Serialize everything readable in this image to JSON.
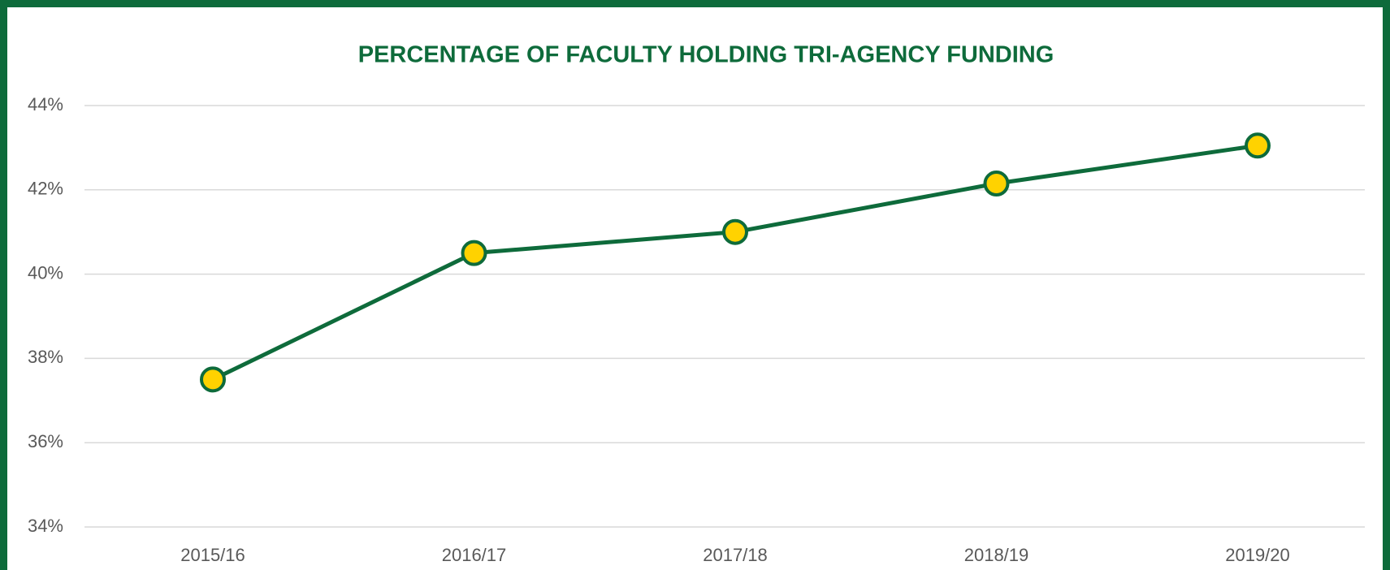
{
  "chart_data": {
    "type": "line",
    "title": "PERCENTAGE OF FACULTY HOLDING TRI-AGENCY FUNDING",
    "categories": [
      "2015/16",
      "2016/17",
      "2017/18",
      "2018/19",
      "2019/20"
    ],
    "series": [
      {
        "color": "#0e6b3b",
        "marker_color": "#ffd200",
        "values": [
          37.5,
          40.5,
          41.0,
          42.15,
          43.05
        ]
      }
    ],
    "ylim": [
      34,
      44
    ],
    "yticks": [
      {
        "value": 34,
        "label": "34%"
      },
      {
        "value": 36,
        "label": "36%"
      },
      {
        "value": 38,
        "label": "38%"
      },
      {
        "value": 40,
        "label": "40%"
      },
      {
        "value": 42,
        "label": "42%"
      },
      {
        "value": 44,
        "label": "44%"
      }
    ],
    "grid": true
  }
}
